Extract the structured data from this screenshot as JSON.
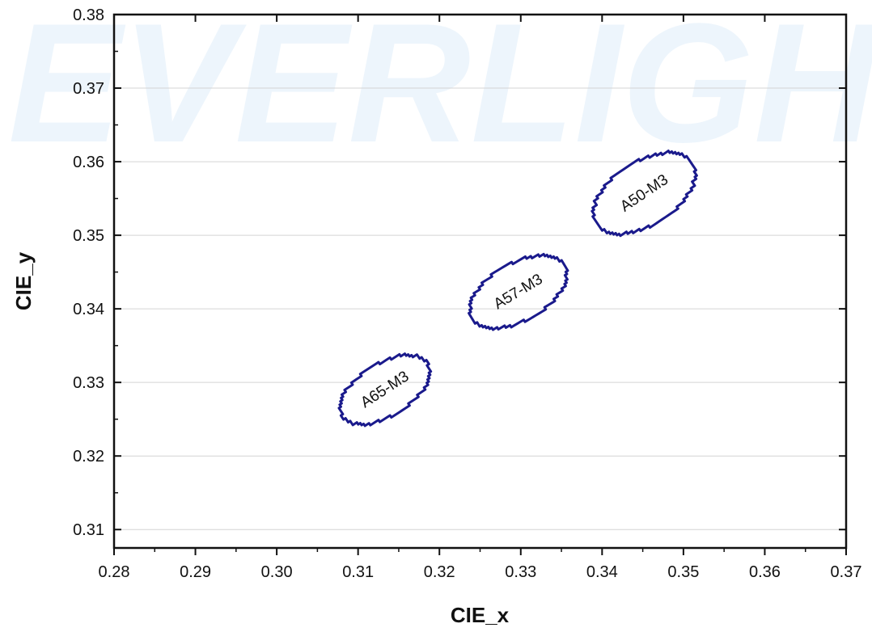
{
  "chart_data": {
    "type": "scatter",
    "title": "",
    "xlabel": "CIE_x",
    "ylabel": "CIE_y",
    "xlim": [
      0.28,
      0.37
    ],
    "ylim": [
      0.3075,
      0.38
    ],
    "xticks": [
      "0.28",
      "0.29",
      "0.30",
      "0.31",
      "0.32",
      "0.33",
      "0.34",
      "0.35",
      "0.36",
      "0.37"
    ],
    "yticks": [
      "0.31",
      "0.32",
      "0.33",
      "0.34",
      "0.35",
      "0.36",
      "0.37",
      "0.38"
    ],
    "grid": "horizontal",
    "watermark": "EVERLIGHT",
    "series_color": "#1a1a8c",
    "regions": [
      {
        "name": "A65-M3",
        "cx": 0.3133,
        "cy": 0.329,
        "rx": 0.0032,
        "ry": 0.0068,
        "tilt_deg": 57
      },
      {
        "name": "A57-M3",
        "cx": 0.3297,
        "cy": 0.3423,
        "rx": 0.0035,
        "ry": 0.0073,
        "tilt_deg": 59
      },
      {
        "name": "A50-M3",
        "cx": 0.3452,
        "cy": 0.3557,
        "rx": 0.0039,
        "ry": 0.0077,
        "tilt_deg": 56
      }
    ]
  }
}
